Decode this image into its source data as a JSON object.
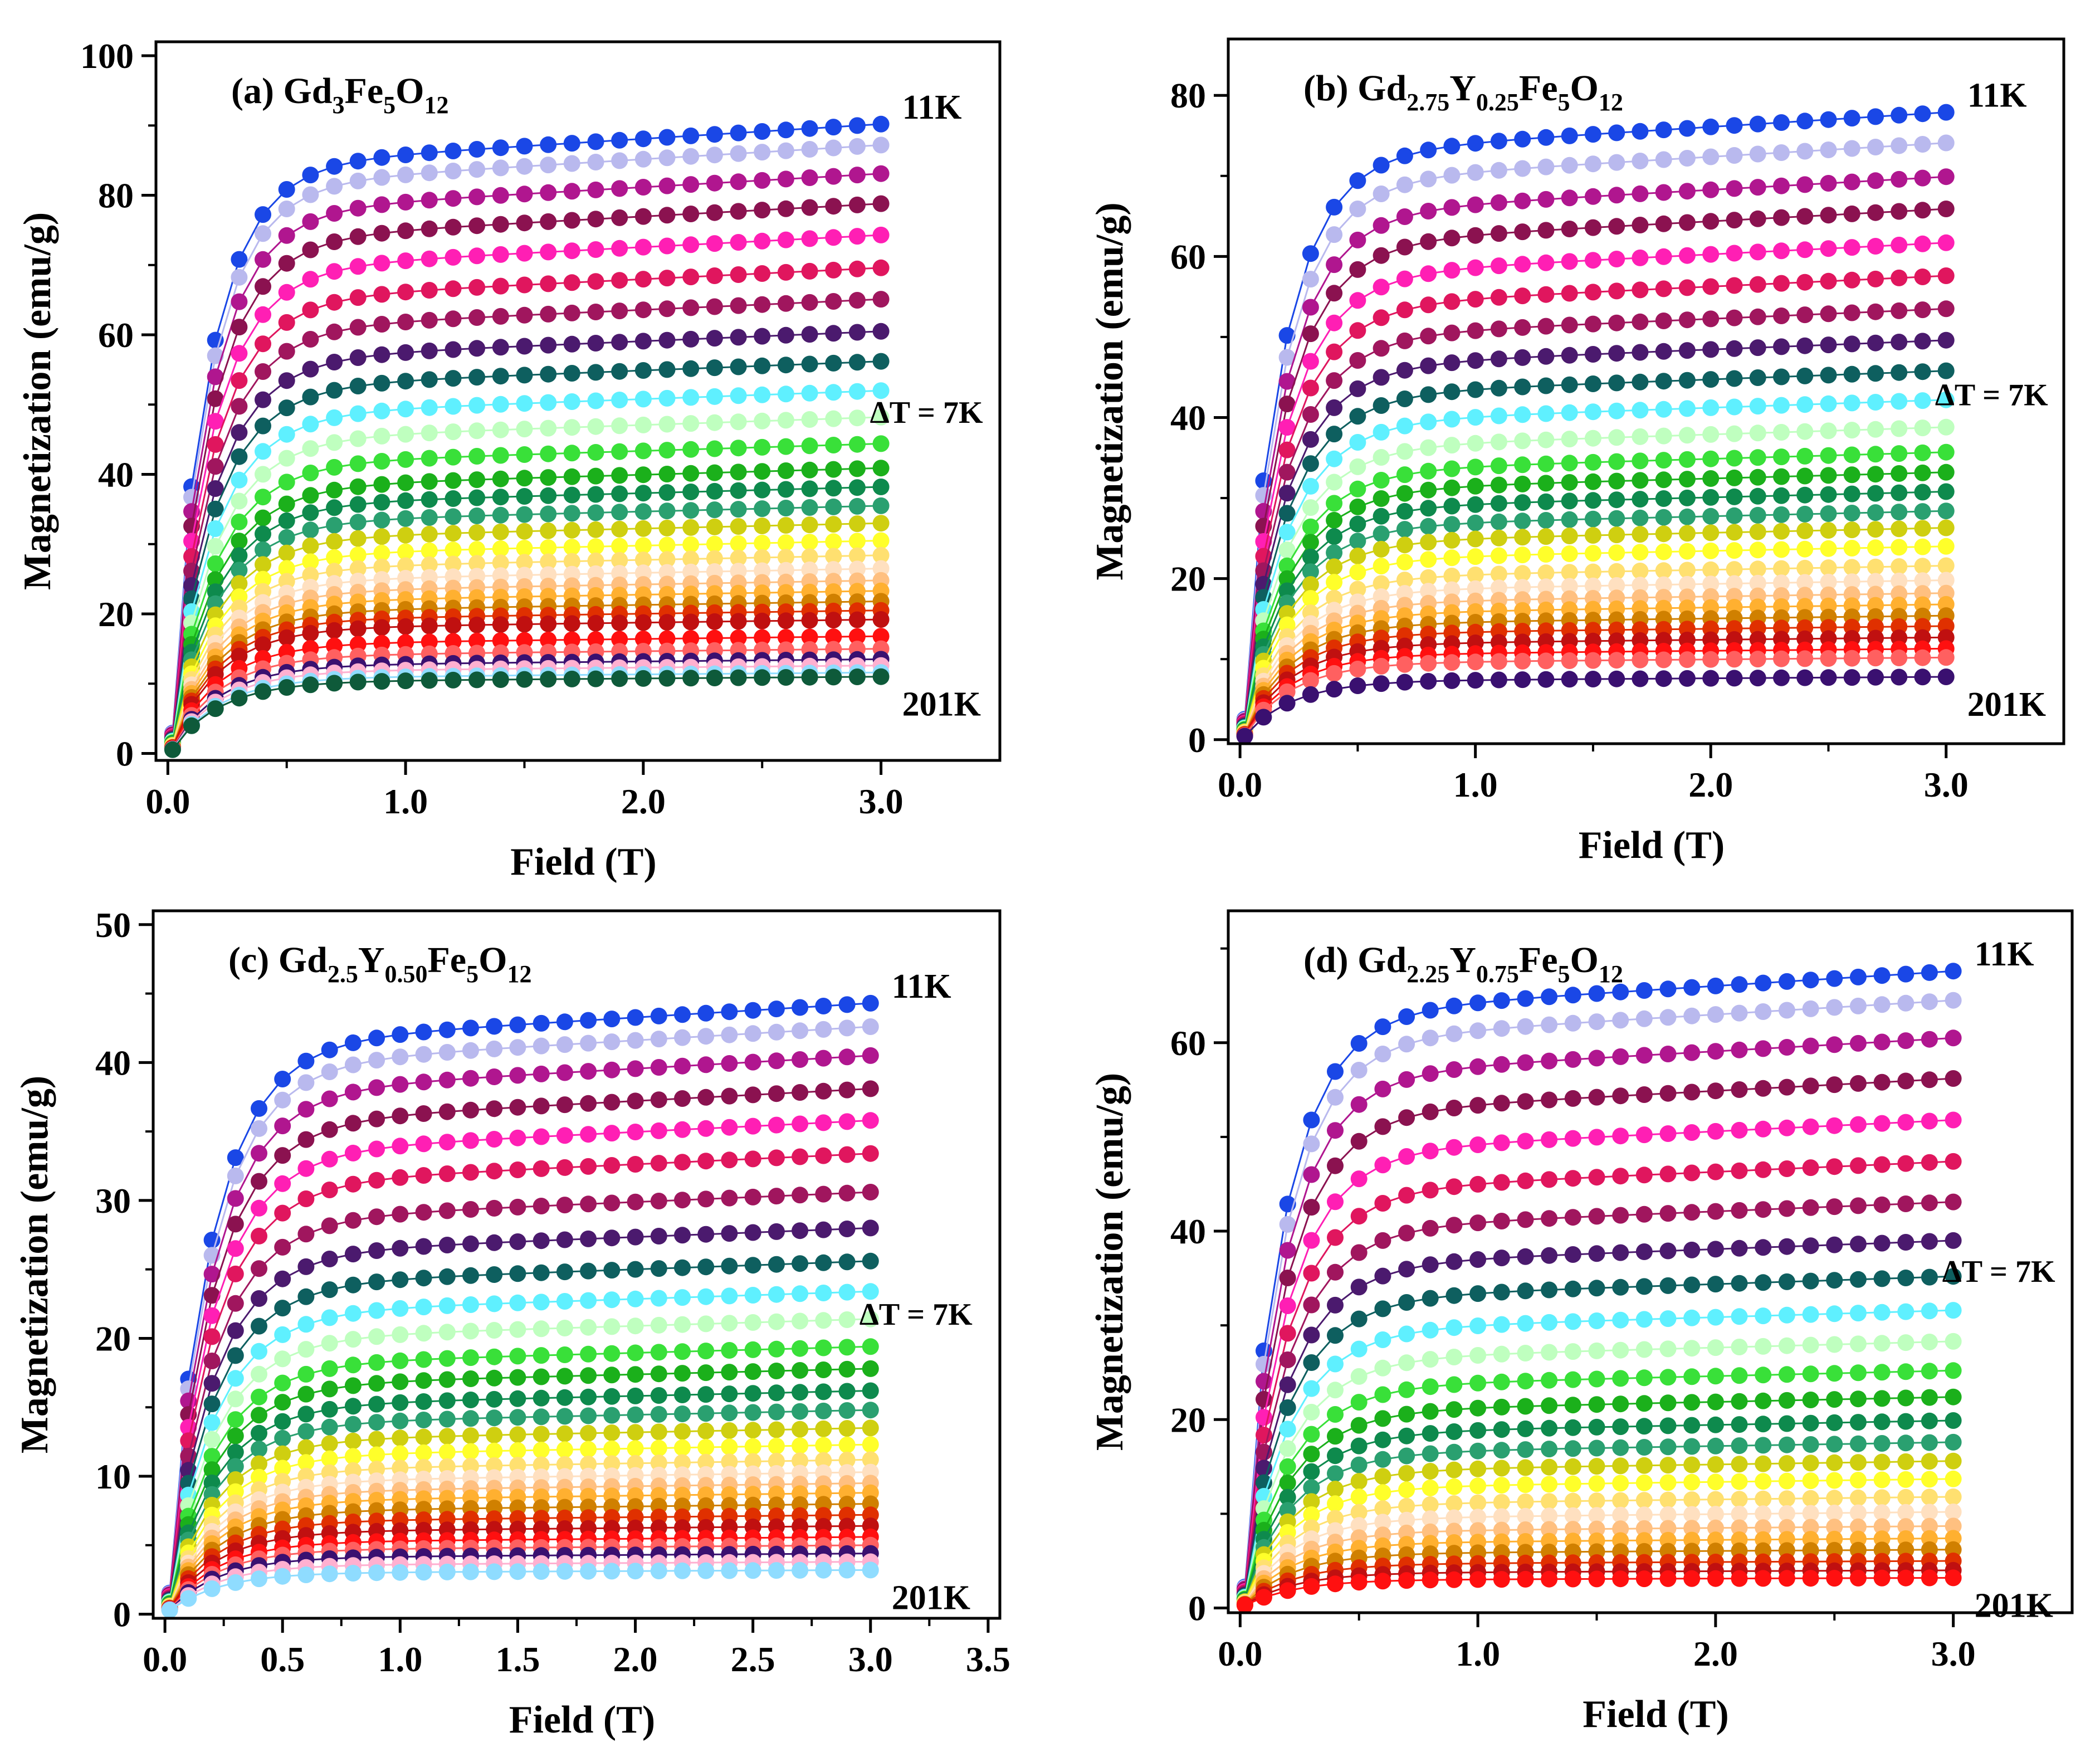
{
  "chart_data": [
    {
      "type": "scatter",
      "panel_label": "(a) ",
      "title_parts": [
        {
          "t": "Gd",
          "s": "n"
        },
        {
          "t": "3",
          "s": "sub"
        },
        {
          "t": "Fe",
          "s": "n"
        },
        {
          "t": "5",
          "s": "sub"
        },
        {
          "t": "O",
          "s": "n"
        },
        {
          "t": "12",
          "s": "sub"
        }
      ],
      "xlabel": "Field (T)",
      "ylabel": "Magnetization (emu/g)",
      "xlim": [
        -0.05,
        3.5
      ],
      "ylim": [
        -1,
        102
      ],
      "xticks": [
        "0.0",
        "1.0",
        "2.0",
        "3.0"
      ],
      "xtick_values": [
        0,
        1,
        2,
        3
      ],
      "yticks": [
        "0",
        "20",
        "40",
        "60",
        "80",
        "100"
      ],
      "ytick_values": [
        0,
        20,
        40,
        60,
        80,
        100
      ],
      "annotations": {
        "top": "11K",
        "mid": "ΔT = 7K",
        "bottom": "201K"
      },
      "saturation_values": [
        90.2,
        87.2,
        83.1,
        78.8,
        74.3,
        69.6,
        65.1,
        60.5,
        56.2,
        52.0,
        48.2,
        44.4,
        40.9,
        38.2,
        35.5,
        33.0,
        30.5,
        28.4,
        26.5,
        24.8,
        23.3,
        21.8,
        20.5,
        19.2,
        16.8,
        15.0,
        13.5,
        12.6,
        11.6,
        11.0
      ],
      "x": [
        0.02,
        0.1,
        0.2,
        0.3,
        0.4,
        0.5,
        0.6,
        0.7,
        0.8,
        0.9,
        1.0,
        1.1,
        1.2,
        1.3,
        1.4,
        1.5,
        1.6,
        1.7,
        1.8,
        1.9,
        2.0,
        2.1,
        2.2,
        2.3,
        2.4,
        2.5,
        2.6,
        2.7,
        2.8,
        2.9,
        3.0
      ]
    },
    {
      "type": "scatter",
      "panel_label": "(b) ",
      "title_parts": [
        {
          "t": "Gd",
          "s": "n"
        },
        {
          "t": "2.75",
          "s": "sub"
        },
        {
          "t": "Y",
          "s": "n"
        },
        {
          "t": "0.25",
          "s": "sub"
        },
        {
          "t": "Fe",
          "s": "n"
        },
        {
          "t": "5",
          "s": "sub"
        },
        {
          "t": "O",
          "s": "n"
        },
        {
          "t": "12",
          "s": "sub"
        }
      ],
      "xlabel": "Field (T)",
      "ylabel": "Magnetization (emu/g)",
      "xlim": [
        -0.05,
        3.5
      ],
      "ylim": [
        -0.5,
        87
      ],
      "xticks": [
        "0.0",
        "1.0",
        "2.0",
        "3.0"
      ],
      "xtick_values": [
        0,
        1,
        2,
        3
      ],
      "yticks": [
        "0",
        "20",
        "40",
        "60",
        "80"
      ],
      "ytick_values": [
        0,
        20,
        40,
        60,
        80
      ],
      "annotations": {
        "top": "11K",
        "mid": "ΔT = 7K",
        "bottom": "201K"
      },
      "saturation_values": [
        77.9,
        74.1,
        69.9,
        65.9,
        61.7,
        57.6,
        53.5,
        49.6,
        45.8,
        42.2,
        38.8,
        35.7,
        33.2,
        30.8,
        28.4,
        26.3,
        24.0,
        21.6,
        19.8,
        18.2,
        16.8,
        15.4,
        14.1,
        12.7,
        11.3,
        10.2,
        7.8
      ],
      "x": [
        0.02,
        0.1,
        0.2,
        0.3,
        0.4,
        0.5,
        0.6,
        0.7,
        0.8,
        0.9,
        1.0,
        1.1,
        1.2,
        1.3,
        1.4,
        1.5,
        1.6,
        1.7,
        1.8,
        1.9,
        2.0,
        2.1,
        2.2,
        2.3,
        2.4,
        2.5,
        2.6,
        2.7,
        2.8,
        2.9,
        3.0
      ]
    },
    {
      "type": "scatter",
      "panel_label": "(c) ",
      "title_parts": [
        {
          "t": "Gd",
          "s": "n"
        },
        {
          "t": "2.5",
          "s": "sub"
        },
        {
          "t": "Y",
          "s": "n"
        },
        {
          "t": "0.50",
          "s": "sub"
        },
        {
          "t": "Fe",
          "s": "n"
        },
        {
          "t": "5",
          "s": "sub"
        },
        {
          "t": "O",
          "s": "n"
        },
        {
          "t": "12",
          "s": "sub"
        }
      ],
      "xlabel": "Field (T)",
      "ylabel": "Magnetization (emu/g)",
      "xlim": [
        -0.05,
        3.55
      ],
      "ylim": [
        -0.3,
        51
      ],
      "xticks": [
        "0.0",
        "0.5",
        "1.0",
        "1.5",
        "2.0",
        "2.5",
        "3.0",
        "3.5"
      ],
      "xtick_values": [
        0,
        0.5,
        1,
        1.5,
        2,
        2.5,
        3,
        3.5
      ],
      "yticks": [
        "0",
        "10",
        "20",
        "30",
        "40",
        "50"
      ],
      "ytick_values": [
        0,
        10,
        20,
        30,
        40,
        50
      ],
      "annotations": {
        "top": "11K",
        "mid": "ΔT = 7K",
        "bottom": "201K"
      },
      "saturation_values": [
        44.3,
        42.6,
        40.5,
        38.1,
        35.8,
        33.4,
        30.6,
        28.0,
        25.6,
        23.4,
        21.4,
        19.4,
        17.8,
        16.2,
        14.8,
        13.5,
        12.3,
        11.2,
        10.3,
        9.5,
        8.8,
        8.0,
        7.2,
        6.4,
        5.6,
        5.0,
        4.4,
        3.8,
        3.2
      ],
      "x": [
        0.02,
        0.1,
        0.2,
        0.3,
        0.4,
        0.5,
        0.6,
        0.7,
        0.8,
        0.9,
        1.0,
        1.1,
        1.2,
        1.3,
        1.4,
        1.5,
        1.6,
        1.7,
        1.8,
        1.9,
        2.0,
        2.1,
        2.2,
        2.3,
        2.4,
        2.5,
        2.6,
        2.7,
        2.8,
        2.9,
        3.0
      ]
    },
    {
      "type": "scatter",
      "panel_label": "(d) ",
      "title_parts": [
        {
          "t": "Gd",
          "s": "n"
        },
        {
          "t": "2.25",
          "s": "sub"
        },
        {
          "t": "Y",
          "s": "n"
        },
        {
          "t": "0.75",
          "s": "sub"
        },
        {
          "t": "Fe",
          "s": "n"
        },
        {
          "t": "5",
          "s": "sub"
        },
        {
          "t": "O",
          "s": "n"
        },
        {
          "t": "12",
          "s": "sub"
        }
      ],
      "xlabel": "Field (T)",
      "ylabel": "Magnetization (emu/g)",
      "xlim": [
        -0.05,
        3.5
      ],
      "ylim": [
        -0.5,
        74
      ],
      "xticks": [
        "0.0",
        "1.0",
        "2.0",
        "3.0"
      ],
      "xtick_values": [
        0,
        1,
        2,
        3
      ],
      "yticks": [
        "0",
        "20",
        "40",
        "60"
      ],
      "ytick_values": [
        0,
        20,
        40,
        60
      ],
      "annotations": {
        "top": "11K",
        "mid": "ΔT = 7K",
        "bottom": "201K"
      },
      "saturation_values": [
        67.6,
        64.5,
        60.5,
        56.2,
        51.8,
        47.4,
        43.1,
        39.0,
        35.2,
        31.6,
        28.3,
        25.2,
        22.4,
        19.9,
        17.6,
        15.6,
        13.7,
        11.8,
        10.2,
        8.7,
        7.4,
        6.2,
        5.0,
        4.0,
        3.2
      ],
      "x": [
        0.02,
        0.1,
        0.2,
        0.3,
        0.4,
        0.5,
        0.6,
        0.7,
        0.8,
        0.9,
        1.0,
        1.1,
        1.2,
        1.3,
        1.4,
        1.5,
        1.6,
        1.7,
        1.8,
        1.9,
        2.0,
        2.1,
        2.2,
        2.3,
        2.4,
        2.5,
        2.6,
        2.7,
        2.8,
        2.9,
        3.0
      ]
    }
  ],
  "palette": [
    "#1a47e6",
    "#b9b9ee",
    "#b0168f",
    "#8b1250",
    "#ff1fb4",
    "#e0165e",
    "#a0165e",
    "#4b1a6e",
    "#0e5f5f",
    "#5ff0ff",
    "#bfffbf",
    "#39e039",
    "#1bb01b",
    "#0e8a4d",
    "#2aa070",
    "#cfcf10",
    "#ffff2a",
    "#ffe070",
    "#ffe0c0",
    "#ffc080",
    "#ffb030",
    "#d08000",
    "#e03000",
    "#c01010",
    "#ff1010",
    "#ff6060",
    "#3a1070",
    "#ffb0d0",
    "#8fdcff",
    "#0e5a3a"
  ]
}
